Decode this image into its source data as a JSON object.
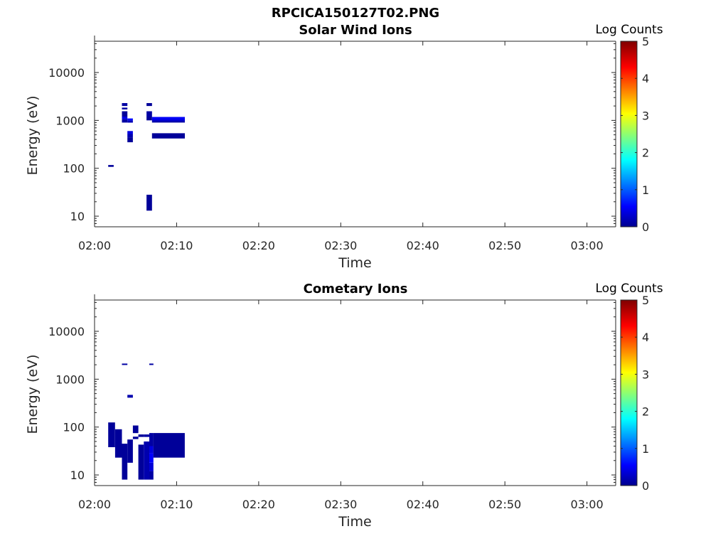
{
  "figure_title": "RPCICA150127T02.PNG",
  "chart_data": [
    {
      "type": "heatmap",
      "title": "Solar Wind Ions",
      "xlabel": "Time",
      "ylabel": "Energy (eV)",
      "yscale": "log",
      "ylim": [
        6,
        45000
      ],
      "xlim_minutes": [
        0,
        63.5
      ],
      "x_ticks": [
        "02:00",
        "02:10",
        "02:20",
        "02:30",
        "02:40",
        "02:50",
        "03:00"
      ],
      "y_ticks": [
        "10",
        "100",
        "1000",
        "10000"
      ],
      "colorbar": {
        "label": "Log Counts",
        "ticks": [
          "0",
          "1",
          "2",
          "3",
          "4",
          "5"
        ],
        "range": [
          0,
          5
        ],
        "colormap": "jet"
      },
      "cells": [
        {
          "t0": "02:01:40",
          "t1": "02:02:20",
          "e0": 107,
          "e1": 117,
          "log_counts": 0.05
        },
        {
          "t0": "02:03:20",
          "t1": "02:04:00",
          "e0": 2000,
          "e1": 2300,
          "log_counts": 0.1
        },
        {
          "t0": "02:03:20",
          "t1": "02:04:00",
          "e0": 1700,
          "e1": 1850,
          "log_counts": 0.1
        },
        {
          "t0": "02:03:20",
          "t1": "02:04:00",
          "e0": 1200,
          "e1": 1550,
          "log_counts": 0.05
        },
        {
          "t0": "02:03:20",
          "t1": "02:04:00",
          "e0": 1050,
          "e1": 1200,
          "log_counts": 0.4
        },
        {
          "t0": "02:03:20",
          "t1": "02:04:00",
          "e0": 900,
          "e1": 1050,
          "log_counts": 0.1
        },
        {
          "t0": "02:04:00",
          "t1": "02:04:40",
          "e0": 1000,
          "e1": 1100,
          "log_counts": 0.6
        },
        {
          "t0": "02:04:00",
          "t1": "02:04:40",
          "e0": 900,
          "e1": 1000,
          "log_counts": 0.2
        },
        {
          "t0": "02:04:00",
          "t1": "02:04:40",
          "e0": 520,
          "e1": 600,
          "log_counts": 0.4
        },
        {
          "t0": "02:04:00",
          "t1": "02:04:40",
          "e0": 440,
          "e1": 520,
          "log_counts": 0.15
        },
        {
          "t0": "02:04:00",
          "t1": "02:04:40",
          "e0": 350,
          "e1": 440,
          "log_counts": 0.05
        },
        {
          "t0": "02:06:20",
          "t1": "02:07:00",
          "e0": 2000,
          "e1": 2300,
          "log_counts": 0.05
        },
        {
          "t0": "02:06:20",
          "t1": "02:07:00",
          "e0": 1200,
          "e1": 1550,
          "log_counts": 0.1
        },
        {
          "t0": "02:06:20",
          "t1": "02:07:00",
          "e0": 1000,
          "e1": 1200,
          "log_counts": 0.05
        },
        {
          "t0": "02:06:20",
          "t1": "02:07:00",
          "e0": 13,
          "e1": 28,
          "log_counts": 0.05
        },
        {
          "t0": "02:07:00",
          "t1": "02:11:00",
          "e0": 1030,
          "e1": 1180,
          "log_counts": 0.5
        },
        {
          "t0": "02:07:00",
          "t1": "02:11:00",
          "e0": 960,
          "e1": 1030,
          "log_counts": 0.3
        },
        {
          "t0": "02:07:00",
          "t1": "02:11:00",
          "e0": 900,
          "e1": 960,
          "log_counts": 0.1
        },
        {
          "t0": "02:07:00",
          "t1": "02:11:00",
          "e0": 420,
          "e1": 540,
          "log_counts": 0.05
        }
      ]
    },
    {
      "type": "heatmap",
      "title": "Cometary Ions",
      "xlabel": "Time",
      "ylabel": "Energy (eV)",
      "yscale": "log",
      "ylim": [
        6,
        45000
      ],
      "xlim_minutes": [
        0,
        63.5
      ],
      "x_ticks": [
        "02:00",
        "02:10",
        "02:20",
        "02:30",
        "02:40",
        "02:50",
        "03:00"
      ],
      "y_ticks": [
        "10",
        "100",
        "1000",
        "10000"
      ],
      "colorbar": {
        "label": "Log Counts",
        "ticks": [
          "0",
          "1",
          "2",
          "3",
          "4",
          "5"
        ],
        "range": [
          0,
          5
        ],
        "colormap": "jet"
      },
      "cells": [
        {
          "t0": "02:01:40",
          "t1": "02:02:30",
          "e0": 38,
          "e1": 125,
          "log_counts": 0.05
        },
        {
          "t0": "02:02:30",
          "t1": "02:03:20",
          "e0": 23,
          "e1": 90,
          "log_counts": 0.05
        },
        {
          "t0": "02:03:20",
          "t1": "02:04:00",
          "e0": 1980,
          "e1": 2120,
          "log_counts": 0.1
        },
        {
          "t0": "02:03:20",
          "t1": "02:04:00",
          "e0": 8,
          "e1": 45,
          "log_counts": 0.05
        },
        {
          "t0": "02:04:00",
          "t1": "02:04:40",
          "e0": 410,
          "e1": 470,
          "log_counts": 0.15
        },
        {
          "t0": "02:04:00",
          "t1": "02:04:40",
          "e0": 18,
          "e1": 55,
          "log_counts": 0.05
        },
        {
          "t0": "02:04:40",
          "t1": "02:05:20",
          "e0": 75,
          "e1": 108,
          "log_counts": 0.05
        },
        {
          "t0": "02:04:40",
          "t1": "02:05:20",
          "e0": 56,
          "e1": 63,
          "log_counts": 0.05
        },
        {
          "t0": "02:05:20",
          "t1": "02:06:00",
          "e0": 62,
          "e1": 70,
          "log_counts": 0.05
        },
        {
          "t0": "02:05:20",
          "t1": "02:06:00",
          "e0": 8,
          "e1": 43,
          "log_counts": 0.05
        },
        {
          "t0": "02:06:00",
          "t1": "02:06:40",
          "e0": 62,
          "e1": 70,
          "log_counts": 0.1
        },
        {
          "t0": "02:06:00",
          "t1": "02:06:40",
          "e0": 8,
          "e1": 50,
          "log_counts": 0.15
        },
        {
          "t0": "02:06:40",
          "t1": "02:07:10",
          "e0": 1980,
          "e1": 2120,
          "log_counts": 0.1
        },
        {
          "t0": "02:06:40",
          "t1": "02:07:10",
          "e0": 40,
          "e1": 75,
          "log_counts": 0.1
        },
        {
          "t0": "02:06:40",
          "t1": "02:07:10",
          "e0": 28,
          "e1": 40,
          "log_counts": 0.4
        },
        {
          "t0": "02:06:40",
          "t1": "02:07:10",
          "e0": 18,
          "e1": 28,
          "log_counts": 0.55
        },
        {
          "t0": "02:06:40",
          "t1": "02:07:10",
          "e0": 12,
          "e1": 18,
          "log_counts": 0.35
        },
        {
          "t0": "02:06:40",
          "t1": "02:07:10",
          "e0": 8,
          "e1": 12,
          "log_counts": 0.1
        },
        {
          "t0": "02:07:10",
          "t1": "02:11:00",
          "e0": 23,
          "e1": 75,
          "log_counts": 0.05
        }
      ]
    }
  ]
}
